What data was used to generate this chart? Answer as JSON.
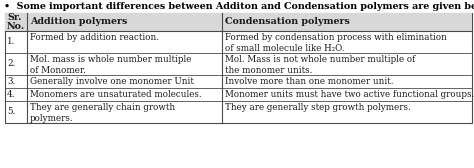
{
  "title": "Some important differences between Additon and Condensation polymers are given below :",
  "bullet": "•",
  "col1_header": "Sr.\nNo.",
  "col2_header": "Addition polymers",
  "col3_header": "Condensation polymers",
  "rows": [
    {
      "num": "1.",
      "addition": "Formed by addition reaction.",
      "condensation": "Formed by condensation process with elimination\nof small molecule like H₂O."
    },
    {
      "num": "2.",
      "addition": "Mol. mass is whole number multiple\nof Monomer.",
      "condensation": "Mol. Mass is not whole number multiple of\nthe monomer units."
    },
    {
      "num": "3.",
      "addition": "Generally involve one monomer Unit",
      "condensation": "Involve more than one monomer unit."
    },
    {
      "num": "4.",
      "addition": "Monomers are unsaturated molecules.",
      "condensation": "Monomer units must have two active functional groups."
    },
    {
      "num": "5.",
      "addition": "They are generally chain growth\npolymers.",
      "condensation": "They are generally step growth polymers."
    }
  ],
  "bg_color": "#ffffff",
  "border_color": "#4a4a4a",
  "text_color": "#1a1a1a",
  "title_color": "#000000",
  "font_size": 6.3,
  "header_font_size": 6.8,
  "title_font_size": 6.8,
  "fig_width": 4.74,
  "fig_height": 1.68,
  "dpi": 100
}
